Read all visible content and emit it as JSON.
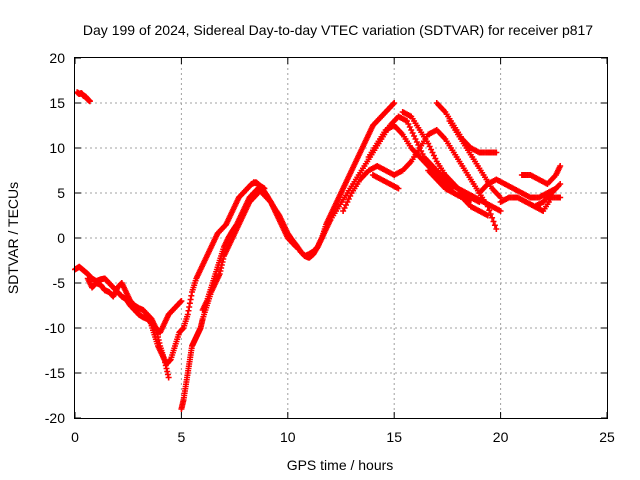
{
  "chart_data": {
    "type": "scatter",
    "title": "Day 199 of 2024, Sidereal Day-to-day VTEC variation (SDTVAR) for receiver p817",
    "xlabel": "GPS time / hours",
    "ylabel": "SDTVAR / TECUs",
    "xlim": [
      0,
      25
    ],
    "ylim": [
      -20,
      20
    ],
    "xticks": [
      "0",
      "5",
      "10",
      "15",
      "20",
      "25"
    ],
    "yticks": [
      "-20",
      "-15",
      "-10",
      "-5",
      "0",
      "5",
      "10",
      "15",
      "20"
    ],
    "grid": true,
    "marker": "+",
    "color": "#ff0000",
    "series": [
      {
        "x": [
          0.1,
          0.2,
          0.3,
          0.4,
          0.5,
          0.6,
          0.7
        ],
        "y": [
          16.2,
          16.0,
          16.1,
          15.8,
          15.7,
          15.4,
          15.2
        ]
      },
      {
        "x": [
          0.0,
          0.2,
          0.4,
          0.6,
          0.8,
          1.0,
          1.2,
          1.4,
          1.6,
          1.8,
          2.0,
          2.2,
          2.4,
          2.6,
          2.8,
          3.0,
          3.2,
          3.4,
          3.6,
          3.8,
          4.0,
          4.2,
          4.4,
          4.6,
          4.8,
          5.0
        ],
        "y": [
          -3.5,
          -3.2,
          -3.6,
          -4.0,
          -4.5,
          -4.8,
          -4.6,
          -4.5,
          -5.0,
          -5.5,
          -6.0,
          -6.5,
          -6.8,
          -7.5,
          -8.0,
          -8.5,
          -8.8,
          -9.0,
          -9.5,
          -10.0,
          -10.5,
          -9.5,
          -8.5,
          -8.0,
          -7.5,
          -7.0
        ]
      },
      {
        "x": [
          0.6,
          0.8,
          1.0,
          1.2,
          1.4,
          1.6,
          1.8,
          2.0,
          2.2,
          2.4,
          2.6,
          2.8,
          3.0,
          3.2,
          3.4,
          3.6,
          3.8,
          4.0,
          4.2,
          4.4
        ],
        "y": [
          -4.5,
          -5.5,
          -5.0,
          -5.2,
          -5.8,
          -6.0,
          -6.5,
          -5.5,
          -5.0,
          -6.0,
          -7.0,
          -7.5,
          -7.8,
          -8.0,
          -8.5,
          -9.0,
          -10.0,
          -12.0,
          -13.5,
          -15.5
        ]
      },
      {
        "x": [
          3.5,
          3.7,
          3.9,
          4.1,
          4.3,
          4.5,
          4.7,
          4.9,
          5.1,
          5.3,
          5.5,
          5.7,
          5.9,
          6.1,
          6.3,
          6.5,
          6.7,
          6.9,
          7.1,
          7.3,
          7.5,
          7.7,
          7.9,
          8.1,
          8.3,
          8.5,
          8.7,
          8.9
        ],
        "y": [
          -9.0,
          -10.5,
          -12.0,
          -13.0,
          -14.0,
          -13.5,
          -12.0,
          -10.5,
          -10.0,
          -8.5,
          -6.0,
          -4.5,
          -3.5,
          -2.5,
          -1.5,
          -0.5,
          0.5,
          1.0,
          1.5,
          2.5,
          3.5,
          4.5,
          5.0,
          5.5,
          6.0,
          6.2,
          5.8,
          5.5
        ]
      },
      {
        "x": [
          5.0,
          5.1,
          5.2,
          5.3,
          5.4,
          5.5,
          5.6,
          5.7,
          5.8,
          5.9,
          6.0,
          6.2,
          6.4,
          6.6,
          6.8,
          7.0,
          7.2,
          7.4,
          7.6,
          7.8,
          8.0,
          8.2,
          8.4,
          8.6
        ],
        "y": [
          -19.0,
          -18.0,
          -16.5,
          -15.0,
          -13.5,
          -12.0,
          -11.5,
          -11.0,
          -10.5,
          -10.0,
          -9.0,
          -7.5,
          -6.0,
          -5.0,
          -4.0,
          -2.0,
          -1.0,
          0.0,
          1.0,
          2.0,
          3.0,
          4.0,
          4.5,
          5.0
        ]
      },
      {
        "x": [
          6.0,
          6.2,
          6.4,
          6.6,
          6.8,
          7.0,
          7.2,
          7.4,
          7.6,
          7.8,
          8.0,
          8.2,
          8.4,
          8.6,
          8.8,
          9.0,
          9.2,
          9.4,
          9.6,
          9.8,
          10.0,
          10.2,
          10.4
        ],
        "y": [
          -8.0,
          -7.0,
          -5.5,
          -4.0,
          -2.5,
          -1.0,
          0.0,
          0.8,
          1.5,
          2.5,
          3.5,
          4.5,
          5.0,
          5.5,
          5.0,
          4.5,
          4.0,
          3.0,
          2.0,
          1.0,
          0.0,
          -0.5,
          -1.0
        ]
      },
      {
        "x": [
          8.4,
          8.6,
          8.8,
          9.0,
          9.2,
          9.4,
          9.6,
          9.8,
          10.0,
          10.2,
          10.4,
          10.6,
          10.8,
          11.0,
          11.2,
          11.4,
          11.6,
          11.8,
          12.0
        ],
        "y": [
          6.2,
          6.0,
          5.5,
          4.8,
          4.0,
          3.2,
          2.5,
          1.5,
          0.5,
          -0.2,
          -0.8,
          -1.5,
          -2.0,
          -2.2,
          -1.8,
          -1.0,
          0.0,
          1.0,
          2.0
        ]
      },
      {
        "x": [
          10.6,
          10.8,
          11.0,
          11.2,
          11.4,
          11.6,
          11.8,
          12.0,
          12.2,
          12.4,
          12.6,
          12.8,
          13.0,
          13.2,
          13.4,
          13.6,
          13.8,
          14.0,
          14.2,
          14.4,
          14.6,
          14.8,
          15.0
        ],
        "y": [
          -1.5,
          -2.0,
          -1.8,
          -1.5,
          -1.0,
          0.0,
          1.5,
          2.5,
          3.5,
          4.5,
          5.5,
          6.5,
          7.5,
          8.5,
          9.5,
          10.5,
          11.5,
          12.5,
          13.0,
          13.5,
          14.0,
          14.5,
          15.0
        ]
      },
      {
        "x": [
          12.0,
          12.4,
          12.8,
          13.2,
          13.6,
          14.0,
          14.4,
          14.8,
          15.2,
          15.6,
          16.0,
          16.4,
          16.8,
          17.2,
          17.6,
          18.0,
          18.4,
          18.8,
          19.2,
          19.6,
          20.0
        ],
        "y": [
          2.0,
          3.5,
          5.0,
          6.5,
          8.0,
          9.5,
          11.0,
          12.5,
          13.5,
          13.0,
          11.0,
          9.0,
          8.0,
          7.0,
          6.0,
          5.5,
          5.0,
          4.5,
          4.0,
          3.5,
          3.0
        ]
      },
      {
        "x": [
          12.6,
          13.0,
          13.4,
          13.8,
          14.2,
          14.6,
          15.0,
          15.4,
          15.8,
          16.2,
          16.6,
          17.0,
          17.4,
          17.8,
          18.2,
          18.6,
          19.0,
          19.4,
          19.8
        ],
        "y": [
          3.0,
          5.0,
          6.5,
          7.5,
          8.0,
          7.5,
          7.0,
          7.5,
          8.5,
          10.0,
          11.5,
          12.0,
          11.0,
          9.5,
          8.0,
          6.5,
          5.0,
          3.5,
          1.0
        ]
      },
      {
        "x": [
          13.8,
          14.2,
          14.6,
          15.0,
          15.4,
          15.8,
          16.2,
          16.6,
          17.0,
          17.4,
          17.8,
          18.2,
          18.6,
          19.0,
          19.4
        ],
        "y": [
          9.0,
          10.5,
          12.0,
          12.5,
          11.5,
          10.0,
          9.0,
          8.0,
          7.0,
          6.0,
          5.0,
          4.5,
          3.5,
          3.0,
          2.5
        ]
      },
      {
        "x": [
          14.0,
          14.4,
          14.8,
          15.2
        ],
        "y": [
          7.0,
          6.5,
          6.0,
          5.5
        ]
      },
      {
        "x": [
          15.4,
          15.8,
          16.2,
          16.6,
          17.0,
          17.4,
          17.8,
          18.2,
          18.6,
          19.0
        ],
        "y": [
          14.0,
          13.5,
          12.0,
          10.5,
          8.5,
          7.0,
          6.0,
          5.0,
          4.5,
          4.0
        ]
      },
      {
        "x": [
          16.6,
          17.0,
          17.4,
          17.8,
          18.2,
          18.6
        ],
        "y": [
          7.5,
          6.5,
          5.5,
          5.0,
          4.5,
          4.2
        ]
      },
      {
        "x": [
          17.0,
          17.4,
          17.8,
          18.2,
          18.6,
          19.0,
          19.4,
          19.8
        ],
        "y": [
          15.0,
          14.0,
          12.5,
          11.0,
          10.0,
          9.5,
          9.5,
          9.5
        ]
      },
      {
        "x": [
          17.6,
          18.0,
          18.4,
          18.8,
          19.2,
          19.6,
          20.0
        ],
        "y": [
          13.0,
          11.5,
          10.0,
          8.5,
          7.0,
          5.5,
          4.5
        ]
      },
      {
        "x": [
          19.0,
          19.4,
          19.8,
          20.2,
          20.6,
          21.0,
          21.4,
          21.8,
          22.2,
          22.6
        ],
        "y": [
          5.0,
          6.0,
          6.5,
          6.0,
          5.5,
          5.0,
          4.5,
          4.5,
          5.0,
          5.5
        ]
      },
      {
        "x": [
          20.0,
          20.4,
          20.8,
          21.2,
          21.6,
          22.0,
          22.4,
          22.8
        ],
        "y": [
          4.0,
          4.5,
          4.5,
          4.0,
          3.5,
          4.0,
          5.0,
          6.0
        ]
      },
      {
        "x": [
          21.0,
          21.4,
          21.8,
          22.2,
          22.6,
          22.8
        ],
        "y": [
          7.0,
          7.0,
          6.5,
          6.0,
          7.0,
          8.0
        ]
      },
      {
        "x": [
          21.6,
          22.0,
          22.4,
          22.8
        ],
        "y": [
          3.5,
          3.0,
          4.5,
          4.5
        ]
      }
    ]
  }
}
